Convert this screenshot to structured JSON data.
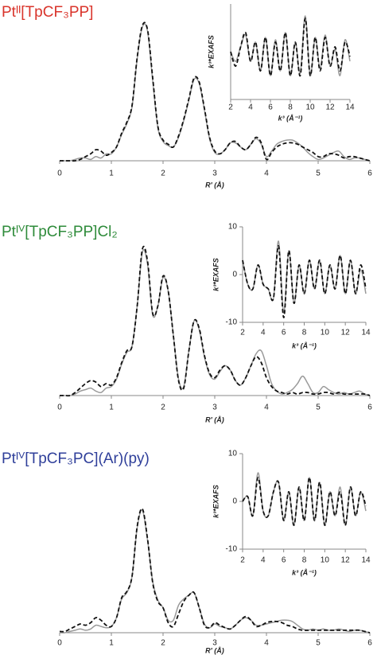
{
  "chart_data": [
    {
      "type": "line",
      "title": "Ptᴵᴵ[TpCF₃PP]",
      "title_color": "#d9342b",
      "xlabel": "R' (Å)",
      "x": [
        0,
        0.1,
        0.2,
        0.3,
        0.4,
        0.5,
        0.6,
        0.7,
        0.8,
        0.9,
        1,
        1.1,
        1.2,
        1.3,
        1.4,
        1.5,
        1.6,
        1.7,
        1.8,
        1.9,
        2,
        2.1,
        2.2,
        2.3,
        2.4,
        2.5,
        2.6,
        2.7,
        2.8,
        2.9,
        3,
        3.1,
        3.2,
        3.3,
        3.4,
        3.5,
        3.6,
        3.7,
        3.8,
        3.9,
        4,
        4.1,
        4.2,
        4.3,
        4.4,
        4.5,
        4.6,
        4.7,
        4.8,
        4.9,
        5,
        5.1,
        5.2,
        5.3,
        5.4,
        5.5,
        5.6,
        5.7,
        5.8,
        5.9,
        6
      ],
      "xlim": [
        0,
        6
      ],
      "xticks": [
        0,
        1,
        2,
        3,
        4,
        5,
        6
      ],
      "ylim": [
        0,
        1.05
      ],
      "series": [
        {
          "color": "#9a9a9a",
          "style": "solid",
          "values": [
            0,
            0,
            0,
            0.01,
            0.02,
            0.02,
            0.01,
            0.03,
            0.02,
            0.05,
            0.05,
            0.1,
            0.19,
            0.27,
            0.39,
            0.74,
            0.97,
            0.94,
            0.58,
            0.24,
            0.14,
            0.11,
            0.1,
            0.17,
            0.29,
            0.44,
            0.59,
            0.56,
            0.37,
            0.16,
            0.06,
            0.05,
            0.08,
            0.13,
            0.13,
            0.1,
            0.08,
            0.12,
            0.16,
            0.12,
            0.03,
            0.07,
            0.12,
            0.14,
            0.15,
            0.15,
            0.13,
            0.1,
            0.06,
            0.03,
            0.01,
            0.02,
            0.04,
            0.06,
            0.07,
            0.03,
            0.01,
            0.02,
            0.02,
            0.01,
            0
          ]
        },
        {
          "color": "#111111",
          "style": "dashed",
          "values": [
            0,
            0,
            0,
            0,
            0.01,
            0.03,
            0.05,
            0.08,
            0.07,
            0.04,
            0.06,
            0.1,
            0.2,
            0.28,
            0.4,
            0.75,
            0.98,
            0.95,
            0.6,
            0.25,
            0.15,
            0.12,
            0.1,
            0.18,
            0.3,
            0.45,
            0.6,
            0.57,
            0.38,
            0.17,
            0.07,
            0.05,
            0.08,
            0.13,
            0.14,
            0.1,
            0.08,
            0.12,
            0.17,
            0.13,
            0.01,
            0.06,
            0.1,
            0.12,
            0.13,
            0.13,
            0.12,
            0.1,
            0.08,
            0.06,
            0.03,
            0.03,
            0.05,
            0.05,
            0.04,
            0.02,
            0.03,
            0.03,
            0.02,
            0.01,
            0
          ]
        }
      ]
    },
    {
      "type": "line",
      "xlabel": "k³ (Å⁻¹)",
      "ylabel": "k³*EXAFS",
      "x": [
        2,
        2.5,
        3,
        3.5,
        4,
        4.5,
        5,
        5.5,
        6,
        6.5,
        7,
        7.5,
        8,
        8.5,
        9,
        9.5,
        10,
        10.5,
        11,
        11.5,
        12,
        12.5,
        13,
        13.5,
        14
      ],
      "xlim": [
        2,
        14
      ],
      "xticks": [
        2,
        4,
        6,
        8,
        10,
        12,
        14
      ],
      "ylim": [
        -10,
        10
      ],
      "series": [
        {
          "color": "#9a9a9a",
          "style": "solid",
          "values": [
            0,
            -2,
            1,
            3.5,
            -2,
            2,
            -4,
            3,
            -5,
            2.5,
            -4,
            4,
            -5,
            2,
            -4.5,
            7.5,
            -5,
            3,
            -3.5,
            3.5,
            -3,
            0.5,
            -5,
            2.5,
            -2
          ]
        },
        {
          "color": "#111111",
          "style": "dashed",
          "values": [
            0,
            -3,
            1,
            4,
            -2,
            2,
            -4,
            3,
            -5,
            2,
            -4,
            4,
            -5,
            2,
            -5,
            7,
            -5,
            3,
            -4,
            3,
            -3,
            1,
            -4,
            2,
            -1
          ]
        }
      ]
    },
    {
      "type": "line",
      "title": "Ptᴵⱽ[TpCF₃PP]Cl₂",
      "title_color": "#2e8b3a",
      "xlabel": "R' (Å)",
      "x": [
        0,
        0.1,
        0.2,
        0.3,
        0.4,
        0.5,
        0.6,
        0.7,
        0.8,
        0.9,
        1,
        1.1,
        1.2,
        1.3,
        1.4,
        1.5,
        1.6,
        1.7,
        1.8,
        1.9,
        2,
        2.1,
        2.2,
        2.3,
        2.4,
        2.5,
        2.6,
        2.7,
        2.8,
        2.9,
        3,
        3.1,
        3.2,
        3.3,
        3.4,
        3.5,
        3.6,
        3.7,
        3.8,
        3.9,
        4,
        4.1,
        4.2,
        4.3,
        4.4,
        4.5,
        4.6,
        4.7,
        4.8,
        4.9,
        5,
        5.1,
        5.2,
        5.3,
        5.4,
        5.5,
        5.6,
        5.7,
        5.8,
        5.9,
        6
      ],
      "xlim": [
        0,
        6
      ],
      "xticks": [
        0,
        1,
        2,
        3,
        4,
        5,
        6
      ],
      "ylim": [
        0,
        1.05
      ],
      "series": [
        {
          "color": "#9a9a9a",
          "style": "solid",
          "values": [
            0,
            0,
            0,
            0.01,
            0.03,
            0.04,
            0.05,
            0.03,
            0.02,
            0.05,
            0.06,
            0.11,
            0.21,
            0.29,
            0.33,
            0.6,
            0.96,
            0.88,
            0.54,
            0.6,
            0.79,
            0.7,
            0.4,
            0.11,
            0.06,
            0.3,
            0.5,
            0.44,
            0.26,
            0.14,
            0.11,
            0.16,
            0.2,
            0.17,
            0.1,
            0.07,
            0.12,
            0.2,
            0.28,
            0.3,
            0.2,
            0.08,
            0.03,
            0.01,
            0.02,
            0.04,
            0.08,
            0.13,
            0.08,
            0.02,
            0.02,
            0.06,
            0.04,
            0.02,
            0.01,
            0.02,
            0.01,
            0.02,
            0.03,
            0.01,
            0
          ]
        },
        {
          "color": "#111111",
          "style": "dashed",
          "values": [
            0,
            0,
            0,
            0.02,
            0.05,
            0.08,
            0.1,
            0.09,
            0.06,
            0.08,
            0.07,
            0.12,
            0.22,
            0.3,
            0.33,
            0.6,
            0.98,
            0.9,
            0.55,
            0.6,
            0.8,
            0.7,
            0.4,
            0.1,
            0.05,
            0.3,
            0.5,
            0.45,
            0.27,
            0.15,
            0.12,
            0.17,
            0.2,
            0.17,
            0.1,
            0.07,
            0.12,
            0.2,
            0.26,
            0.22,
            0.12,
            0.06,
            0.03,
            0.02,
            0.01,
            0.02,
            0.01,
            0.02,
            0.02,
            0.01,
            0.01,
            0.02,
            0.02,
            0.01,
            0.02,
            0.01,
            0.01,
            0.01,
            0.01,
            0.01,
            0
          ]
        }
      ]
    },
    {
      "type": "line",
      "xlabel": "k³ (Å⁻¹)",
      "ylabel": "k³*EXAFS",
      "x": [
        2,
        2.5,
        3,
        3.5,
        4,
        4.5,
        5,
        5.5,
        6,
        6.5,
        7,
        7.5,
        8,
        8.5,
        9,
        9.5,
        10,
        10.5,
        11,
        11.5,
        12,
        12.5,
        13,
        13.5,
        14
      ],
      "xlim": [
        2,
        14
      ],
      "xticks": [
        2,
        4,
        6,
        8,
        10,
        12,
        14
      ],
      "ylim": [
        -10,
        10
      ],
      "yticks": [
        -10,
        0,
        10
      ],
      "series": [
        {
          "color": "#9a9a9a",
          "style": "solid",
          "values": [
            3,
            -2,
            -3,
            2,
            -2,
            -3,
            -5,
            7,
            -8,
            5,
            -6,
            2,
            -4,
            3,
            -3,
            3,
            -4,
            2,
            -3,
            4,
            -4,
            3,
            -4,
            1,
            -4
          ]
        },
        {
          "color": "#111111",
          "style": "dashed",
          "values": [
            3,
            -2,
            -3,
            2,
            -2,
            -3,
            -5,
            6,
            -9,
            5,
            -6,
            2,
            -4,
            3,
            -3,
            3,
            -4,
            2,
            -3,
            4,
            -4,
            3,
            -4,
            2,
            -3
          ]
        }
      ]
    },
    {
      "type": "line",
      "title": "Ptᴵⱽ[TpCF₃PC](Ar)(py)",
      "title_color": "#2f3f9a",
      "xlabel": "R' (Å)",
      "x": [
        0,
        0.1,
        0.2,
        0.3,
        0.4,
        0.5,
        0.6,
        0.7,
        0.8,
        0.9,
        1,
        1.1,
        1.2,
        1.3,
        1.4,
        1.5,
        1.6,
        1.7,
        1.8,
        1.9,
        2,
        2.1,
        2.2,
        2.3,
        2.4,
        2.5,
        2.6,
        2.7,
        2.8,
        2.9,
        3,
        3.1,
        3.2,
        3.3,
        3.4,
        3.5,
        3.6,
        3.7,
        3.8,
        3.9,
        4,
        4.1,
        4.2,
        4.3,
        4.4,
        4.5,
        4.6,
        4.7,
        4.8,
        4.9,
        5,
        5.1,
        5.2,
        5.3,
        5.4,
        5.5,
        5.6,
        5.7,
        5.8,
        5.9,
        6
      ],
      "xlim": [
        0,
        6
      ],
      "xticks": [
        0,
        1,
        2,
        3,
        4,
        5,
        6
      ],
      "ylim": [
        0,
        1.05
      ],
      "series": [
        {
          "color": "#9a9a9a",
          "style": "solid",
          "values": [
            0,
            0,
            0.01,
            0.02,
            0.03,
            0.02,
            0.03,
            0.06,
            0.05,
            0.04,
            0.05,
            0.12,
            0.27,
            0.32,
            0.45,
            0.84,
            0.98,
            0.74,
            0.41,
            0.26,
            0.2,
            0.1,
            0.1,
            0.22,
            0.27,
            0.3,
            0.32,
            0.2,
            0.07,
            0.04,
            0.07,
            0.05,
            0.04,
            0.03,
            0.06,
            0.1,
            0.12,
            0.1,
            0.06,
            0.06,
            0.07,
            0.08,
            0.09,
            0.1,
            0.1,
            0.09,
            0.06,
            0.03,
            0.02,
            0.03,
            0.02,
            0.03,
            0.02,
            0.02,
            0.03,
            0.02,
            0.01,
            0.02,
            0.02,
            0.01,
            0
          ]
        },
        {
          "color": "#111111",
          "style": "dashed",
          "values": [
            0.01,
            0.01,
            0.03,
            0.05,
            0.07,
            0.06,
            0.08,
            0.12,
            0.1,
            0.06,
            0.05,
            0.12,
            0.28,
            0.33,
            0.45,
            0.85,
            0.99,
            0.75,
            0.4,
            0.25,
            0.2,
            0.08,
            0.05,
            0.15,
            0.25,
            0.3,
            0.32,
            0.2,
            0.06,
            0.04,
            0.08,
            0.06,
            0.04,
            0.03,
            0.06,
            0.1,
            0.13,
            0.1,
            0.05,
            0.06,
            0.08,
            0.09,
            0.09,
            0.08,
            0.06,
            0.05,
            0.03,
            0.02,
            0.02,
            0.02,
            0.02,
            0.02,
            0.02,
            0.02,
            0.02,
            0.02,
            0.02,
            0.02,
            0.02,
            0.01,
            0
          ]
        }
      ]
    },
    {
      "type": "line",
      "xlabel": "k³ (Å⁻¹)",
      "ylabel": "k³*EXAFS",
      "x": [
        2,
        2.5,
        3,
        3.5,
        4,
        4.5,
        5,
        5.5,
        6,
        6.5,
        7,
        7.5,
        8,
        8.5,
        9,
        9.5,
        10,
        10.5,
        11,
        11.5,
        12,
        12.5,
        13,
        13.5,
        14
      ],
      "xlim": [
        2,
        14
      ],
      "xticks": [
        2,
        4,
        6,
        8,
        10,
        12,
        14
      ],
      "ylim": [
        -10,
        10
      ],
      "yticks": [
        -10,
        0,
        10
      ],
      "series": [
        {
          "color": "#9a9a9a",
          "style": "solid",
          "values": [
            0,
            1,
            -3,
            6,
            -2,
            -3,
            2,
            4,
            -4,
            2,
            -5,
            3,
            -4,
            5,
            -4,
            4,
            -5,
            2,
            -3,
            3,
            -5,
            3,
            -3,
            2,
            -2
          ]
        },
        {
          "color": "#111111",
          "style": "dashed",
          "values": [
            0,
            1,
            -3,
            5,
            -2,
            -3,
            2,
            4,
            -4,
            2,
            -5,
            3,
            -4,
            5,
            -4,
            4,
            -5,
            2,
            -3,
            2,
            -5,
            3,
            -3,
            2,
            -1
          ]
        }
      ]
    }
  ]
}
